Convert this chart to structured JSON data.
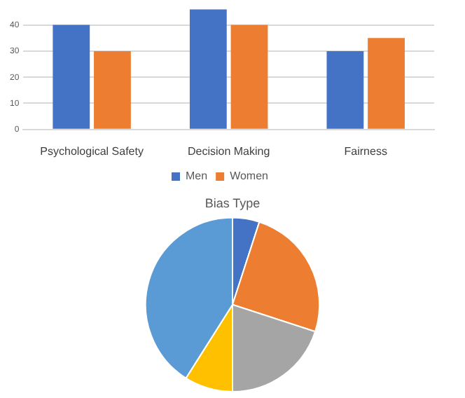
{
  "chart_data": [
    {
      "type": "bar",
      "categories": [
        "Psychological Safety",
        "Decision Making",
        "Fairness"
      ],
      "series": [
        {
          "name": "Men",
          "color": "#4472c4",
          "values": [
            40,
            46,
            30
          ]
        },
        {
          "name": "Women",
          "color": "#ed7d31",
          "values": [
            30,
            40,
            35
          ]
        }
      ],
      "ylim": [
        0,
        46
      ],
      "yticks": [
        0,
        10,
        20,
        30,
        40
      ],
      "grid": "y",
      "legend": "bottom"
    },
    {
      "type": "pie",
      "title": "Bias Type",
      "categories": [
        null,
        null,
        null,
        null,
        null
      ],
      "values": [
        5,
        25,
        20,
        9,
        41
      ],
      "colors": [
        "#4472c4",
        "#ed7d31",
        "#a5a5a5",
        "#ffc000",
        "#5b9bd5"
      ],
      "legend": false
    }
  ]
}
